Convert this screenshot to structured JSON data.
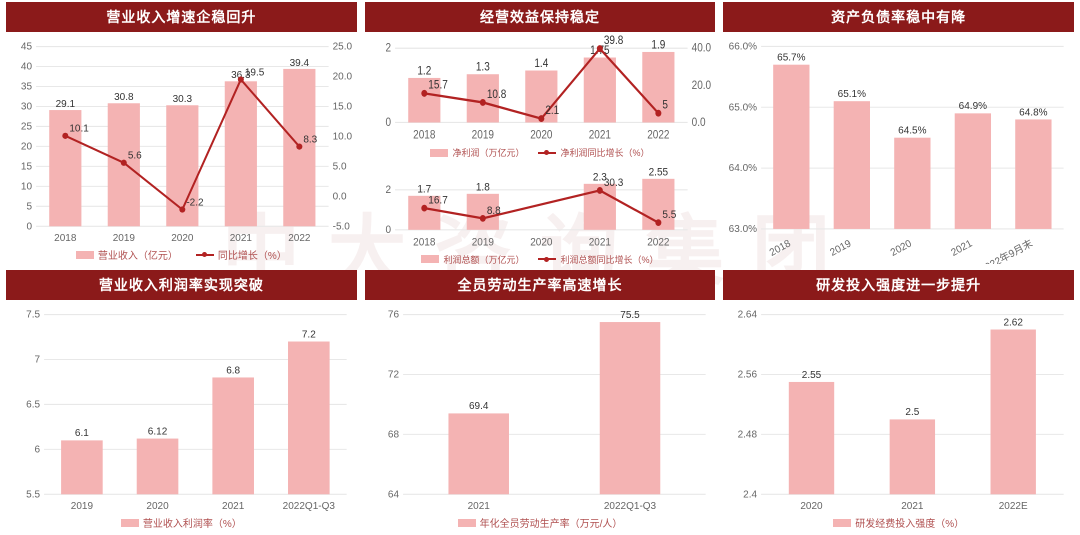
{
  "watermark": "中大咨询集团",
  "palette": {
    "title_bg": "#8b1a1a",
    "title_fg": "#ffffff",
    "bar": "#f4b3b3",
    "line": "#b22222",
    "grid": "#e8e8e8",
    "axis_text": "#666666",
    "value_text": "#333333",
    "legend_text": "#b05050",
    "background": "#ffffff"
  },
  "panels": {
    "p1": {
      "title": "营业收入增速企稳回升",
      "type": "bar+line",
      "categories": [
        "2018",
        "2019",
        "2020",
        "2021",
        "2022"
      ],
      "bar_values": [
        29.1,
        30.8,
        30.3,
        36.3,
        39.4
      ],
      "line_values": [
        10.1,
        5.6,
        -2.2,
        19.5,
        8.3
      ],
      "left_ticks": [
        0,
        5,
        10,
        15,
        20,
        25,
        30,
        35,
        40,
        45
      ],
      "right_ticks": [
        -5.0,
        0.0,
        5.0,
        10.0,
        15.0,
        20.0,
        25.0
      ],
      "left_lim": [
        0,
        45
      ],
      "right_lim": [
        -5,
        25
      ],
      "legend_bar": "营业收入（亿元）",
      "legend_line": "同比增长（%）"
    },
    "p2a": {
      "title": "经营效益保持稳定",
      "type": "bar+line",
      "categories": [
        "2018",
        "2019",
        "2020",
        "2021",
        "2022"
      ],
      "bar_values": [
        1.2,
        1.3,
        1.4,
        1.75,
        1.9
      ],
      "line_values": [
        15.7,
        10.8,
        2.1,
        39.8,
        5
      ],
      "left_ticks": [
        0,
        2
      ],
      "right_ticks": [
        0,
        20,
        40
      ],
      "left_lim": [
        0,
        2
      ],
      "right_lim": [
        0,
        40
      ],
      "legend_bar": "净利润（万亿元）",
      "legend_line": "净利润同比增长（%）"
    },
    "p2b": {
      "type": "bar+line",
      "categories": [
        "2018",
        "2019",
        "2020",
        "2021",
        "2022"
      ],
      "bar_values": [
        1.7,
        1.8,
        null,
        2.3,
        2.55
      ],
      "line_values": [
        16.7,
        8.8,
        null,
        30.3,
        5.5
      ],
      "left_ticks": [
        0,
        2
      ],
      "right_ticks": [],
      "left_lim": [
        0,
        2.6
      ],
      "right_lim": [
        0,
        40
      ],
      "legend_bar": "利润总额（万亿元）",
      "legend_line": "利润总额同比增长（%）"
    },
    "p3": {
      "title": "资产负债率稳中有降",
      "type": "bar",
      "categories": [
        "2018",
        "2019",
        "2020",
        "2021",
        "2022年9月末"
      ],
      "values": [
        65.7,
        65.1,
        64.5,
        64.9,
        64.8
      ],
      "y_ticks": [
        "63.0%",
        "64.0%",
        "65.0%",
        "66.0%"
      ],
      "y_lim": [
        63.0,
        66.0
      ],
      "bar_color": "#f4b3b3",
      "axis_rotate": -30
    },
    "p4": {
      "title": "营业收入利润率实现突破",
      "type": "bar",
      "categories": [
        "2019",
        "2020",
        "2021",
        "2022Q1-Q3"
      ],
      "values": [
        6.1,
        6.12,
        6.8,
        7.2
      ],
      "y_ticks": [
        5.5,
        6,
        6.5,
        7,
        7.5
      ],
      "y_lim": [
        5.5,
        7.5
      ],
      "legend": "营业收入利润率（%）"
    },
    "p5": {
      "title": "全员劳动生产率高速增长",
      "type": "bar",
      "categories": [
        "2021",
        "2022Q1-Q3"
      ],
      "values": [
        69.4,
        75.5
      ],
      "y_ticks": [
        64,
        68,
        72,
        76
      ],
      "y_lim": [
        64,
        76
      ],
      "legend": "年化全员劳动生产率（万元/人）"
    },
    "p6": {
      "title": "研发投入强度进一步提升",
      "type": "bar",
      "categories": [
        "2020",
        "2021",
        "2022E"
      ],
      "values": [
        2.55,
        2.5,
        2.62
      ],
      "y_ticks": [
        2.4,
        2.48,
        2.56,
        2.64
      ],
      "y_lim": [
        2.4,
        2.64
      ],
      "legend": "研发经费投入强度（%）"
    }
  }
}
